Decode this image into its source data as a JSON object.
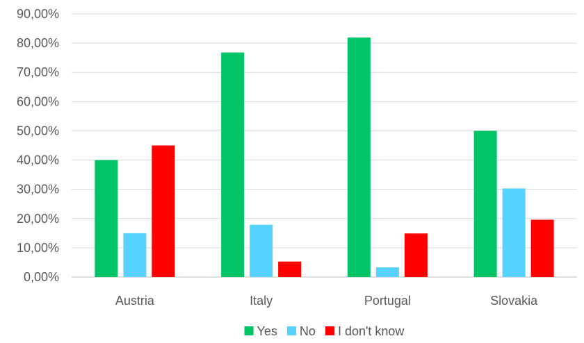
{
  "chart_data": {
    "type": "bar",
    "title": "",
    "xlabel": "",
    "ylabel": "",
    "categories": [
      "Austria",
      "Italy",
      "Portugal",
      "Slovakia"
    ],
    "series": [
      {
        "name": "Yes",
        "color": "#00c466",
        "values": [
          40.0,
          76.8,
          81.9,
          50.0
        ]
      },
      {
        "name": "No",
        "color": "#55d2ff",
        "values": [
          15.0,
          17.9,
          3.3,
          30.3
        ]
      },
      {
        "name": "I don't know",
        "color": "#ff0000",
        "values": [
          45.0,
          5.3,
          14.9,
          19.6
        ]
      }
    ],
    "ylim": [
      0,
      90
    ],
    "yticks": [
      0,
      10,
      20,
      30,
      40,
      50,
      60,
      70,
      80,
      90
    ],
    "ytick_labels": [
      "0,00%",
      "10,00%",
      "20,00%",
      "30,00%",
      "40,00%",
      "50,00%",
      "60,00%",
      "70,00%",
      "80,00%",
      "90,00%"
    ],
    "grid": true,
    "legend_position": "bottom"
  }
}
